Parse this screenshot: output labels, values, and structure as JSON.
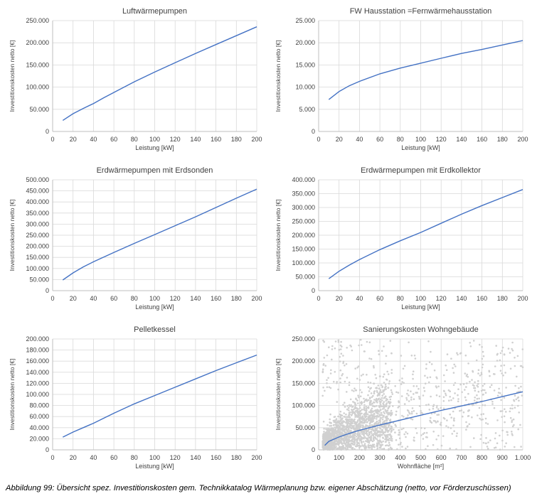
{
  "caption": "Abbildung 99: Übersicht spez. Investitionskosten gem. Technikkatalog Wärmeplanung bzw. eigener Abschätzung (netto, vor Förderzuschüssen)",
  "colors": {
    "line": "#4472c4",
    "grid": "#d9d9d9",
    "axis": "#bfbfbf",
    "scatter": "#d0d0d0",
    "text": "#404040"
  },
  "chart_data": [
    {
      "type": "line",
      "title": "Luftwärmepumpen",
      "xlabel": "Leistung [kW]",
      "ylabel": "Investitionskosten netto [€]",
      "xlim": [
        0,
        200
      ],
      "ylim": [
        0,
        250000
      ],
      "xticks": [
        0,
        20,
        40,
        60,
        80,
        100,
        120,
        140,
        160,
        180,
        200
      ],
      "yticks": [
        0,
        50000,
        100000,
        150000,
        200000,
        250000
      ],
      "ytick_labels": [
        "0",
        "50.000",
        "100.000",
        "150.000",
        "200.000",
        "250.000"
      ],
      "series": [
        {
          "x": [
            10,
            20,
            30,
            40,
            50,
            60,
            80,
            100,
            120,
            140,
            160,
            180,
            200
          ],
          "y": [
            25000,
            40000,
            52000,
            63000,
            76000,
            88000,
            112000,
            134000,
            155000,
            176000,
            196000,
            216000,
            236000
          ]
        }
      ]
    },
    {
      "type": "line",
      "title": "FW Hausstation =Fernwärmehausstation",
      "xlabel": "Leistung [kW]",
      "ylabel": "Investitionskosten netto [€]",
      "xlim": [
        0,
        200
      ],
      "ylim": [
        0,
        25000
      ],
      "xticks": [
        0,
        20,
        40,
        60,
        80,
        100,
        120,
        140,
        160,
        180,
        200
      ],
      "yticks": [
        0,
        5000,
        10000,
        15000,
        20000,
        25000
      ],
      "ytick_labels": [
        "0",
        "5.000",
        "10.000",
        "15.000",
        "20.000",
        "25.000"
      ],
      "series": [
        {
          "x": [
            10,
            20,
            30,
            40,
            60,
            80,
            100,
            120,
            140,
            160,
            180,
            200
          ],
          "y": [
            7200,
            9000,
            10300,
            11300,
            13000,
            14300,
            15400,
            16500,
            17600,
            18500,
            19500,
            20500
          ]
        }
      ]
    },
    {
      "type": "line",
      "title": "Erdwärmepumpen mit Erdsonden",
      "xlabel": "Leistung [kW]",
      "ylabel": "Investitionskosten netto [€]",
      "xlim": [
        0,
        200
      ],
      "ylim": [
        0,
        500000
      ],
      "xticks": [
        0,
        20,
        40,
        60,
        80,
        100,
        120,
        140,
        160,
        180,
        200
      ],
      "yticks": [
        0,
        50000,
        100000,
        150000,
        200000,
        250000,
        300000,
        350000,
        400000,
        450000,
        500000
      ],
      "ytick_labels": [
        "0",
        "50.000",
        "100.000",
        "150.000",
        "200.000",
        "250.000",
        "300.000",
        "350.000",
        "400.000",
        "450.000",
        "500.000"
      ],
      "series": [
        {
          "x": [
            10,
            20,
            30,
            40,
            60,
            80,
            100,
            120,
            140,
            160,
            180,
            200
          ],
          "y": [
            48000,
            80000,
            107000,
            130000,
            172000,
            213000,
            253000,
            293000,
            333000,
            375000,
            417000,
            458000
          ]
        }
      ]
    },
    {
      "type": "line",
      "title": "Erdwärmepumpen mit Erdkollektor",
      "xlabel": "Leistung [kW]",
      "ylabel": "Investitionskosten netto [€]",
      "xlim": [
        0,
        200
      ],
      "ylim": [
        0,
        400000
      ],
      "xticks": [
        0,
        20,
        40,
        60,
        80,
        100,
        120,
        140,
        160,
        180,
        200
      ],
      "yticks": [
        0,
        50000,
        100000,
        150000,
        200000,
        250000,
        300000,
        350000,
        400000
      ],
      "ytick_labels": [
        "0",
        "50.000",
        "100.000",
        "150.000",
        "200.000",
        "250.000",
        "300.000",
        "350.000",
        "400.000"
      ],
      "series": [
        {
          "x": [
            10,
            20,
            30,
            40,
            60,
            80,
            100,
            120,
            140,
            160,
            180,
            200
          ],
          "y": [
            43000,
            70000,
            92000,
            112000,
            148000,
            180000,
            210000,
            243000,
            276000,
            307000,
            336000,
            365000
          ]
        }
      ]
    },
    {
      "type": "line",
      "title": "Pelletkessel",
      "xlabel": "Leistung [kW]",
      "ylabel": "Investitionskosten netto [€]",
      "xlim": [
        0,
        200
      ],
      "ylim": [
        0,
        200000
      ],
      "xticks": [
        0,
        20,
        40,
        60,
        80,
        100,
        120,
        140,
        160,
        180,
        200
      ],
      "yticks": [
        0,
        20000,
        40000,
        60000,
        80000,
        100000,
        120000,
        140000,
        160000,
        180000,
        200000
      ],
      "ytick_labels": [
        "0",
        "20.000",
        "40.000",
        "60.000",
        "80.000",
        "100.000",
        "120.000",
        "140.000",
        "160.000",
        "180.000",
        "200.000"
      ],
      "series": [
        {
          "x": [
            10,
            20,
            30,
            40,
            50,
            60,
            80,
            100,
            120,
            140,
            160,
            180,
            200
          ],
          "y": [
            23000,
            32000,
            40000,
            48000,
            57000,
            66000,
            83000,
            98000,
            113000,
            128000,
            143000,
            157000,
            171000
          ]
        }
      ]
    },
    {
      "type": "scatter",
      "title": "Sanierungskosten  Wohngebäude",
      "xlabel": "Wohnfläche [m²]",
      "ylabel": "Investitionskosten netto [€]",
      "xlim": [
        0,
        1000
      ],
      "ylim": [
        0,
        250000
      ],
      "xticks": [
        0,
        100,
        200,
        300,
        400,
        500,
        600,
        700,
        800,
        900,
        1000
      ],
      "xtick_labels": [
        "0",
        "100",
        "200",
        "300",
        "400",
        "500",
        "600",
        "700",
        "800",
        "900",
        "1.000"
      ],
      "yticks": [
        0,
        50000,
        100000,
        150000,
        200000,
        250000
      ],
      "ytick_labels": [
        "0",
        "50.000",
        "100.000",
        "150.000",
        "200.000",
        "250.000"
      ],
      "scatter_cloud": {
        "x_range": [
          20,
          1000
        ],
        "y_range": [
          0,
          250000
        ],
        "density": "dense below 350 m², sparse above"
      },
      "series": [
        {
          "x": [
            30,
            50,
            100,
            150,
            200,
            300,
            400,
            500,
            600,
            700,
            800,
            900,
            1000
          ],
          "y": [
            10000,
            19000,
            29000,
            37000,
            44000,
            56000,
            67000,
            78000,
            89000,
            99000,
            109000,
            120000,
            131000
          ]
        }
      ]
    }
  ]
}
